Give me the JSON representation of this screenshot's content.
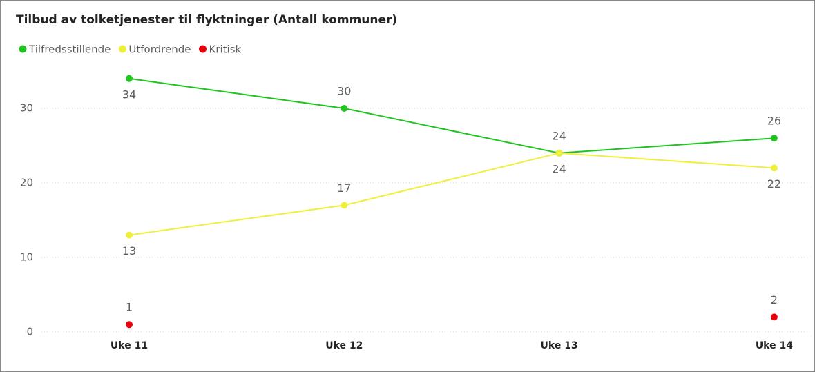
{
  "chart_data": {
    "type": "line",
    "title": "Tilbud av tolketjenester til flyktninger (Antall kommuner)",
    "categories": [
      "Uke 11",
      "Uke 12",
      "Uke 13",
      "Uke 14"
    ],
    "series": [
      {
        "name": "Tilfredsstillende",
        "color": "#1fc41f",
        "values": [
          34,
          30,
          24,
          26
        ]
      },
      {
        "name": "Utfordrende",
        "color": "#eef03a",
        "values": [
          13,
          17,
          24,
          22
        ]
      },
      {
        "name": "Kritisk",
        "color": "#e8000b",
        "values": [
          1,
          null,
          null,
          2
        ]
      }
    ],
    "ylim": [
      0,
      36
    ],
    "yticks": [
      0,
      10,
      20,
      30
    ],
    "grid": true,
    "legend": "top-left"
  }
}
